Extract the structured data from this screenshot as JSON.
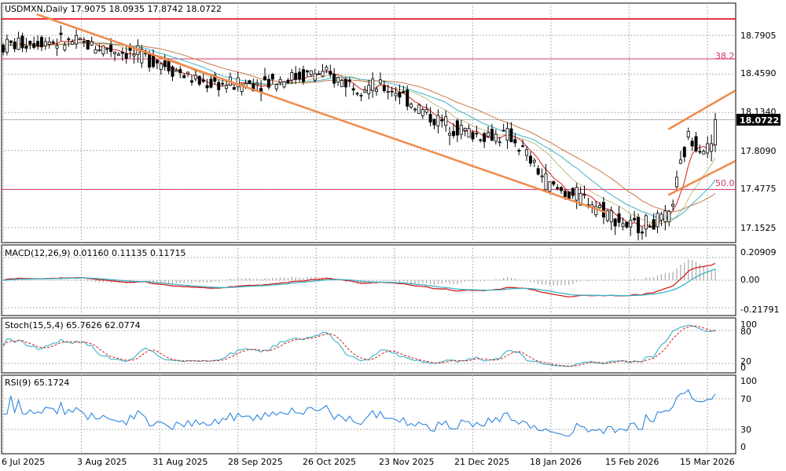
{
  "colors": {
    "background": "#ffffff",
    "grid": "#b0b0b0",
    "candles": "#000000",
    "horizontal_line": "#e8283c",
    "fib_line": "#d6336c",
    "trendline": "#f08a4b",
    "ma_fast": "#d21e1e",
    "ma_mid": "#3ab3c4",
    "ma_slow": "#c97a4a",
    "ma_long": "#8b8b2a",
    "macd_line": "#d21e1e",
    "macd_signal": "#3ab3c4",
    "macd_hist": "#a9a9a9",
    "stoch_k": "#3ab3c4",
    "stoch_d": "#d21e1e",
    "rsi_line": "#2e86de"
  },
  "main": {
    "header": "USDMXN,Daily  17.9075 18.0935 17.8742 18.0722",
    "y_ticks": [
      "18.7905",
      "18.4590",
      "18.1340",
      "17.8090",
      "17.4775",
      "17.1525"
    ],
    "current_price": "18.0722",
    "fib_382": "38.2",
    "fib_50": "50.0"
  },
  "macd": {
    "header": "MACD(12,26,9) 0.01160 0.11135 0.11715",
    "y_ticks": [
      "0.20909",
      "0.00",
      "-0.21791"
    ]
  },
  "stoch": {
    "header": "Stoch(15,5,4) 65.7626 62.0774",
    "y_ticks": [
      "100",
      "80",
      "20",
      "0"
    ]
  },
  "rsi": {
    "header": "RSI(9) 65.1724",
    "y_ticks": [
      "100",
      "70",
      "30",
      "0"
    ]
  },
  "x_labels": [
    "6 Jul 2025",
    "3 Aug 2025",
    "31 Aug 2025",
    "28 Sep 2025",
    "26 Oct 2025",
    "23 Nov 2025",
    "21 Dec 2025",
    "18 Jan 2026",
    "15 Feb 2026",
    "15 Mar 2026"
  ],
  "chart_data": [
    {
      "type": "candlestick",
      "title": "USDMXN,Daily",
      "ohlc_last": {
        "open": 17.9075,
        "high": 18.0935,
        "low": 17.8742,
        "close": 18.0722
      },
      "ylim": [
        17.05,
        19.0
      ],
      "x_dates": [
        "6 Jul 2025",
        "3 Aug 2025",
        "31 Aug 2025",
        "28 Sep 2025",
        "26 Oct 2025",
        "23 Nov 2025",
        "21 Dec 2025",
        "18 Jan 2026",
        "15 Feb 2026",
        "15 Mar 2026"
      ],
      "close_path": [
        [
          "6 Jul 2025",
          18.7
        ],
        [
          "20 Jul 2025",
          18.75
        ],
        [
          "3 Aug 2025",
          18.72
        ],
        [
          "17 Aug 2025",
          18.66
        ],
        [
          "31 Aug 2025",
          18.57
        ],
        [
          "14 Sep 2025",
          18.39
        ],
        [
          "28 Sep 2025",
          18.37
        ],
        [
          "12 Oct 2025",
          18.41
        ],
        [
          "26 Oct 2025",
          18.47
        ],
        [
          "9 Nov 2025",
          18.37
        ],
        [
          "23 Nov 2025",
          18.33
        ],
        [
          "7 Dec 2025",
          18.08
        ],
        [
          "21 Dec 2025",
          17.95
        ],
        [
          "4 Jan 2026",
          17.93
        ],
        [
          "18 Jan 2026",
          17.5
        ],
        [
          "1 Feb 2026",
          17.38
        ],
        [
          "15 Feb 2026",
          17.16
        ],
        [
          "1 Mar 2026",
          17.22
        ],
        [
          "8 Mar 2026",
          17.92
        ],
        [
          "15 Mar 2026",
          17.82
        ],
        [
          "22 Mar 2026",
          18.07
        ]
      ],
      "horizontal_levels": [
        18.93,
        18.59,
        18.134,
        17.4775
      ],
      "fib_levels": [
        {
          "label": "38.2",
          "value": 18.59
        },
        {
          "label": "50.0",
          "value": 17.4775
        }
      ],
      "trendlines": [
        {
          "name": "downtrend",
          "from": [
            "18 Jul 2025",
            18.97
          ],
          "to": [
            "7 Feb 2026",
            17.28
          ]
        },
        {
          "name": "channel-upper",
          "from": [
            "1 Mar 2026",
            17.99
          ],
          "to": [
            "25 Mar 2026",
            18.32
          ]
        },
        {
          "name": "channel-lower",
          "from": [
            "1 Mar 2026",
            17.43
          ],
          "to": [
            "25 Mar 2026",
            17.72
          ]
        }
      ]
    },
    {
      "type": "line",
      "title": "MACD(12,26,9)",
      "values_last": {
        "hist": 0.0116,
        "macd": 0.11135,
        "signal": 0.11715
      },
      "ylim": [
        -0.27,
        0.26
      ],
      "y_ticks": [
        0.20909,
        0.0,
        -0.21791
      ]
    },
    {
      "type": "line",
      "title": "Stoch(15,5,4)",
      "values_last": {
        "k": 65.7626,
        "d": 62.0774
      },
      "ylim": [
        0,
        100
      ],
      "levels": [
        20,
        80
      ]
    },
    {
      "type": "line",
      "title": "RSI(9)",
      "values_last": {
        "rsi": 65.1724
      },
      "ylim": [
        0,
        100
      ],
      "levels": [
        30,
        70
      ]
    }
  ]
}
